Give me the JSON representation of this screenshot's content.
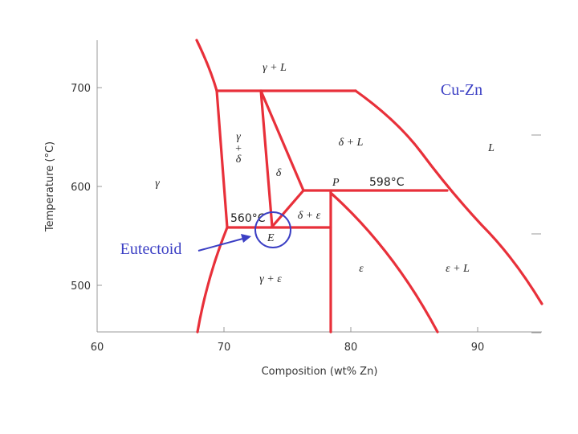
{
  "diagram": {
    "title": "Cu-Zn",
    "x_axis": {
      "label": "Composition (wt% Zn)",
      "ticks": [
        60,
        70,
        80,
        90
      ]
    },
    "y_axis": {
      "label": "Temperature (°C)",
      "ticks": [
        700,
        600,
        500
      ]
    },
    "regions": [
      "γ + L",
      "γ",
      "+",
      "δ",
      "δ + L",
      "L",
      "δ",
      "γ",
      "δ + ε",
      "γ + ε",
      "ε",
      "ε + L"
    ],
    "points": {
      "peritectic": "P",
      "peritectic_temp": "598°C",
      "eutectoid": "E",
      "eutectoid_temp": "560°C"
    },
    "annotation": "Eutectoid"
  }
}
